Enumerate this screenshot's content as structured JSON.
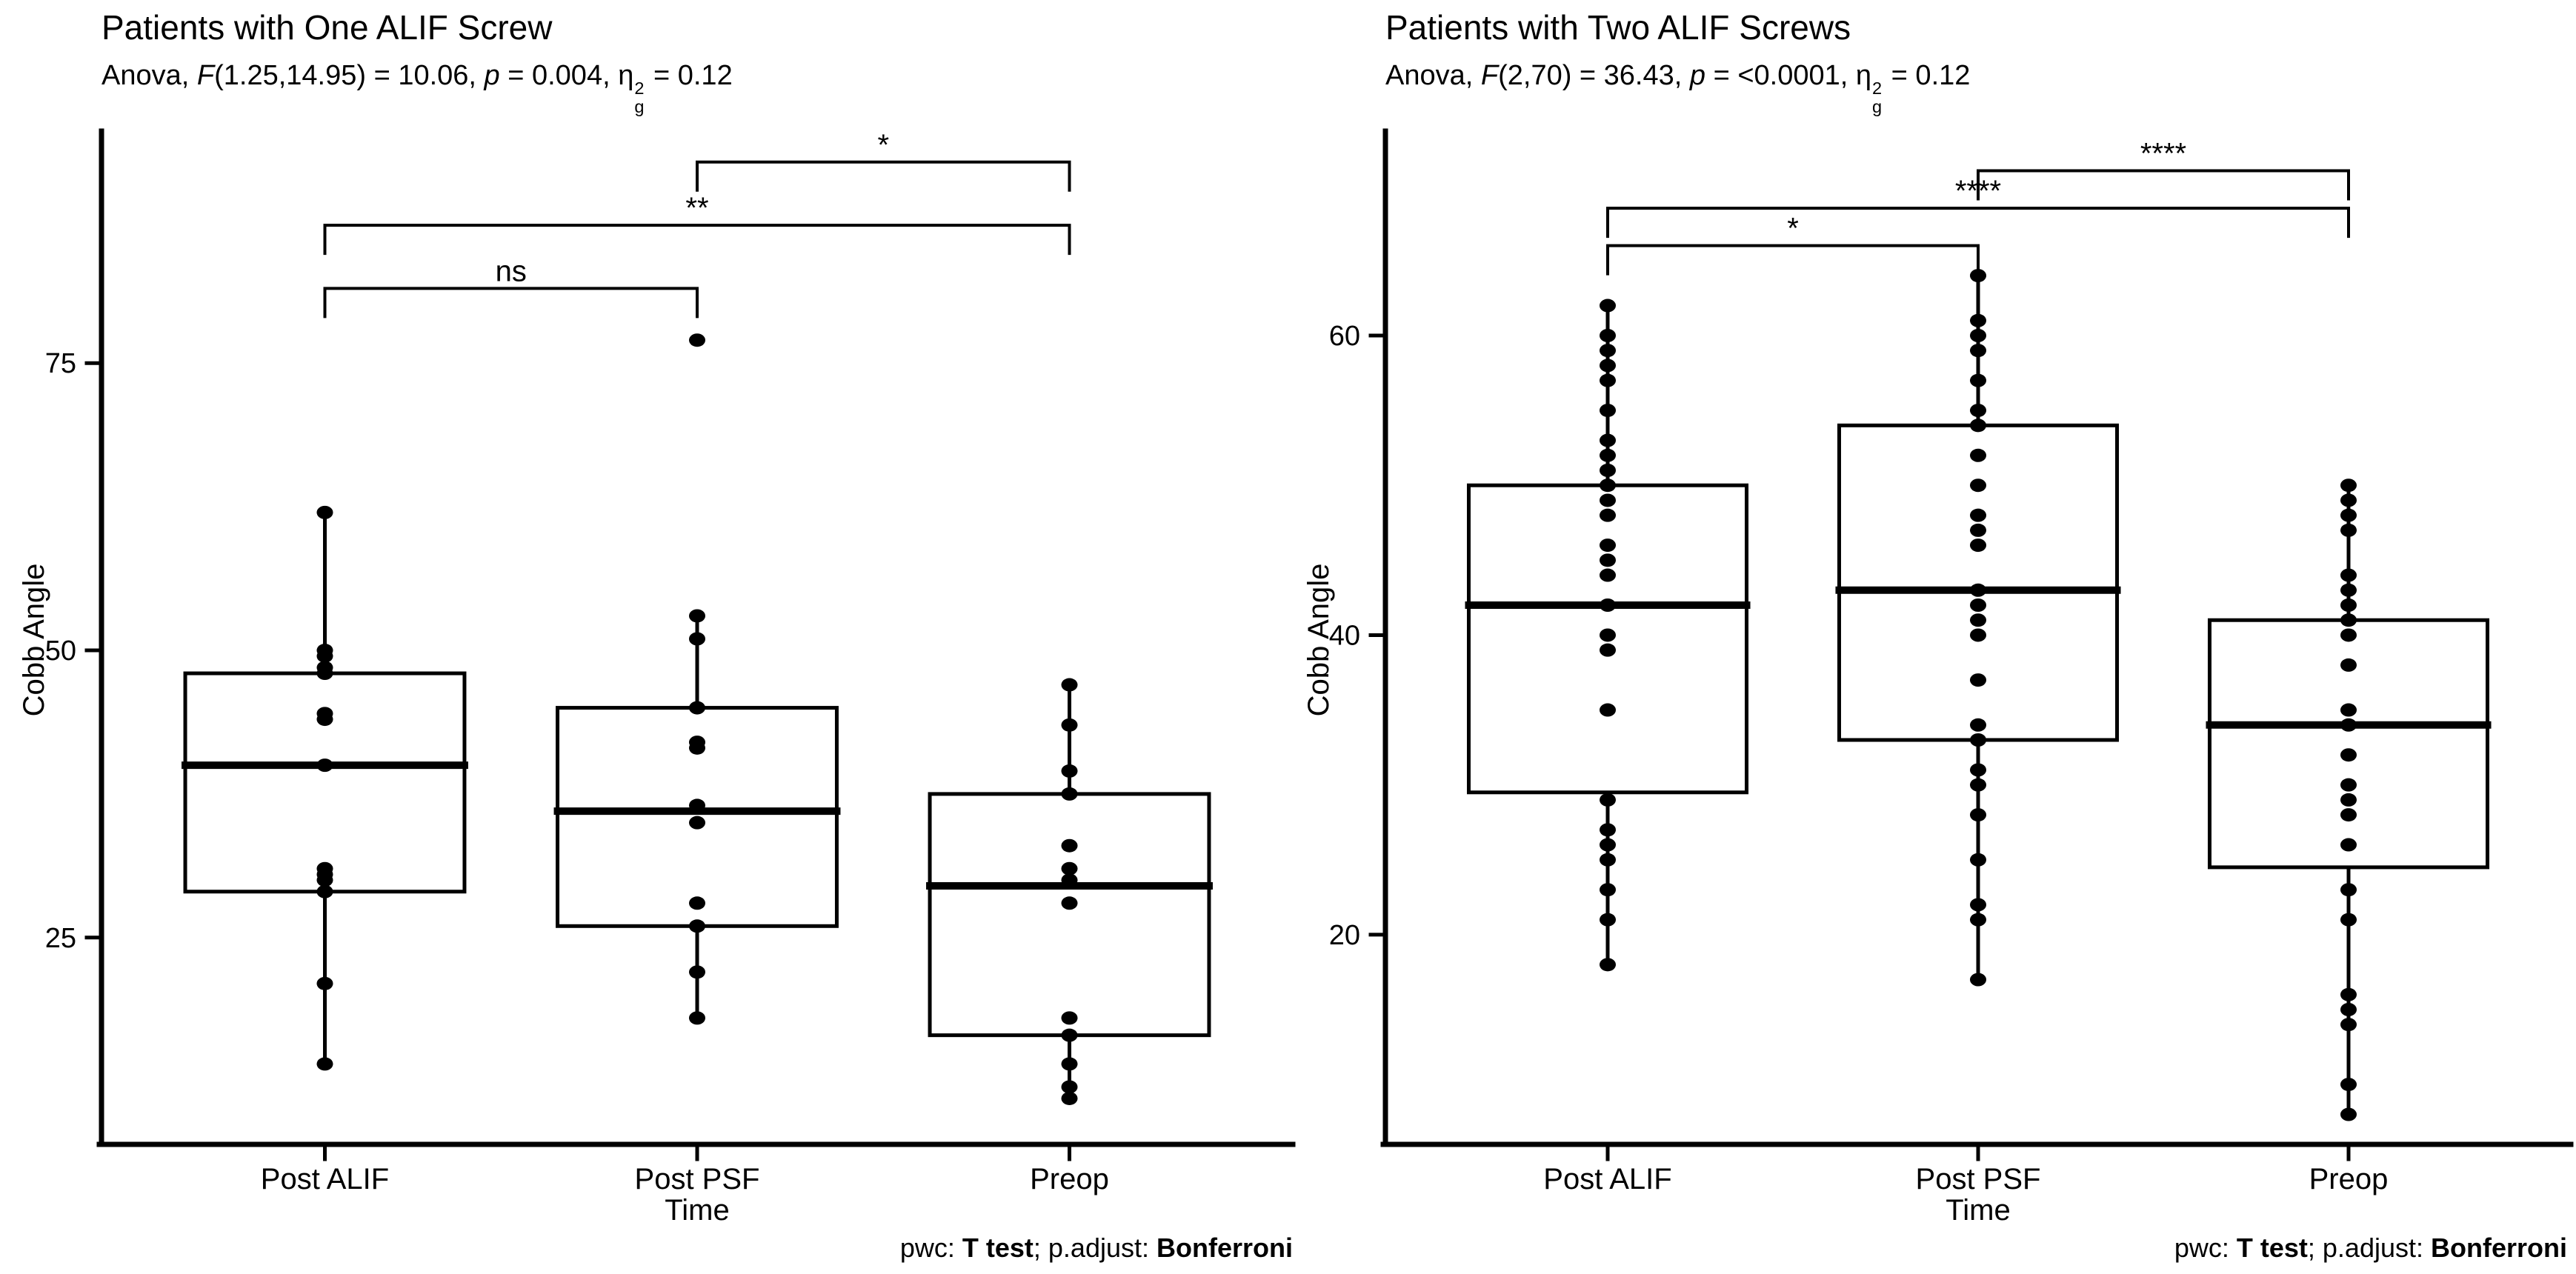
{
  "page": {
    "background": "#ffffff",
    "ink": "#000000",
    "box_fill": "#ffffff"
  },
  "chart_data": [
    {
      "type": "boxplot",
      "title": "Patients with One ALIF Screw",
      "subtitle": {
        "pre": "Anova, ",
        "f_sym": "F",
        "f_rest": "(1.25,14.95) = 10.06, ",
        "p_sym": "p",
        "p_rest": " = 0.004, ",
        "eta_sym": "η",
        "eta_sup": "2",
        "eta_sub": "g",
        "eta_rest": " = 0.12"
      },
      "xlabel": "Time",
      "ylabel": "Cobb Angle",
      "caption": {
        "pwc_label": "pwc: ",
        "pwc_value": "T test",
        "adjust_label": "; p.adjust: ",
        "adjust_value": "Bonferroni"
      },
      "categories": [
        "Post ALIF",
        "Post PSF",
        "Preop"
      ],
      "y_ticks": [
        25,
        50,
        75
      ],
      "y_range": [
        7,
        95
      ],
      "grid": false,
      "legend": "none",
      "groups": [
        {
          "category": "Post ALIF",
          "box": {
            "q1": 29,
            "median": 40,
            "q3": 48,
            "whisker_low": 14,
            "whisker_high": 62
          },
          "points": [
            62,
            50,
            49.5,
            48.5,
            48,
            44.5,
            44,
            40,
            31,
            30.5,
            30,
            29,
            21,
            14
          ]
        },
        {
          "category": "Post PSF",
          "box": {
            "q1": 26,
            "median": 36,
            "q3": 45,
            "whisker_low": 18,
            "whisker_high": 53
          },
          "points": [
            77,
            53,
            51,
            45,
            42,
            41.5,
            36.5,
            35,
            28,
            26,
            22,
            18
          ]
        },
        {
          "category": "Preop",
          "box": {
            "q1": 16.5,
            "median": 29.5,
            "q3": 37.5,
            "whisker_low": 11,
            "whisker_high": 47
          },
          "points": [
            47,
            43.5,
            39.5,
            37.5,
            33,
            31,
            30,
            28,
            18,
            16.5,
            14,
            12,
            11
          ]
        }
      ],
      "brackets": [
        {
          "group1": "Post ALIF",
          "group2": "Post PSF",
          "label": "ns",
          "y": 81.5
        },
        {
          "group1": "Post ALIF",
          "group2": "Preop",
          "label": "**",
          "y": 87
        },
        {
          "group1": "Post PSF",
          "group2": "Preop",
          "label": "*",
          "y": 92.5
        }
      ]
    },
    {
      "type": "boxplot",
      "title": "Patients with Two ALIF Screws",
      "subtitle": {
        "pre": "Anova, ",
        "f_sym": "F",
        "f_rest": "(2,70) = 36.43, ",
        "p_sym": "p",
        "p_rest": " = <0.0001, ",
        "eta_sym": "η",
        "eta_sup": "2",
        "eta_sub": "g",
        "eta_rest": " = 0.12"
      },
      "xlabel": "Time",
      "ylabel": "Cobb Angle",
      "caption": {
        "pwc_label": "pwc: ",
        "pwc_value": "T test",
        "adjust_label": "; p.adjust: ",
        "adjust_value": "Bonferroni"
      },
      "categories": [
        "Post ALIF",
        "Post PSF",
        "Preop"
      ],
      "y_ticks": [
        20,
        40,
        60
      ],
      "y_range": [
        6,
        73.5
      ],
      "grid": false,
      "legend": "none",
      "groups": [
        {
          "category": "Post ALIF",
          "box": {
            "q1": 29.5,
            "median": 42,
            "q3": 50,
            "whisker_low": 18,
            "whisker_high": 62
          },
          "points": [
            62,
            60,
            59,
            58,
            57,
            55,
            53,
            52,
            51,
            50,
            49,
            48,
            46,
            45,
            44,
            42,
            40,
            39,
            35,
            29,
            27,
            26,
            25,
            23,
            21,
            18
          ]
        },
        {
          "category": "Post PSF",
          "box": {
            "q1": 33,
            "median": 43,
            "q3": 54,
            "whisker_low": 17,
            "whisker_high": 64
          },
          "points": [
            64,
            61,
            60,
            59,
            57,
            55,
            54,
            52,
            50,
            48,
            47,
            46,
            43,
            42,
            41,
            40,
            37,
            34,
            33,
            31,
            30,
            28,
            25,
            22,
            21,
            17
          ]
        },
        {
          "category": "Preop",
          "box": {
            "q1": 24.5,
            "median": 34,
            "q3": 41,
            "whisker_low": 8,
            "whisker_high": 50
          },
          "points": [
            50,
            49,
            48,
            47,
            44,
            43,
            42,
            41,
            40,
            38,
            35,
            34,
            32,
            30,
            29,
            28,
            26,
            23,
            21,
            16,
            15,
            14,
            10,
            8
          ]
        }
      ],
      "brackets": [
        {
          "group1": "Post ALIF",
          "group2": "Post PSF",
          "label": "*",
          "y": 66
        },
        {
          "group1": "Post ALIF",
          "group2": "Preop",
          "label": "****",
          "y": 68.5
        },
        {
          "group1": "Post PSF",
          "group2": "Preop",
          "label": "****",
          "y": 71
        }
      ]
    }
  ]
}
